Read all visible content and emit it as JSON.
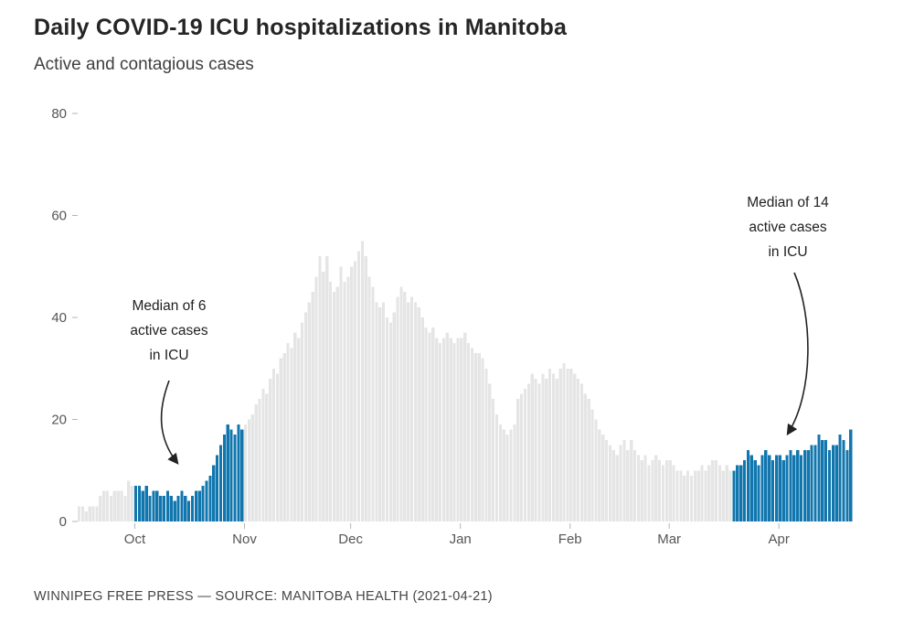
{
  "header": {
    "title": "Daily COVID-19 ICU hospitalizations in Manitoba",
    "subtitle": "Active and contagious cases"
  },
  "footer": {
    "credit": "WINNIPEG FREE PRESS — SOURCE: MANITOBA HEALTH (2021-04-21)"
  },
  "annotations": {
    "left": {
      "lines": [
        "Median of 6",
        "active cases",
        "in ICU"
      ]
    },
    "right": {
      "lines": [
        "Median of 14",
        "active cases",
        "in ICU"
      ]
    }
  },
  "colors": {
    "highlight_blue": "#1076ad",
    "muted_gray": "#e5e5e5",
    "axis_text": "#555555",
    "annotation_text": "#1f1f1f"
  },
  "chart_data": {
    "type": "bar",
    "title": "Daily COVID-19 ICU hospitalizations in Manitoba",
    "subtitle": "Active and contagious cases",
    "xlabel": "",
    "ylabel": "",
    "ylim": [
      0,
      80
    ],
    "y_ticks": [
      0,
      20,
      40,
      60,
      80
    ],
    "grid": "none",
    "legend": "none",
    "x_tick_months": [
      {
        "label": "Oct",
        "index": 16
      },
      {
        "label": "Nov",
        "index": 47
      },
      {
        "label": "Dec",
        "index": 77
      },
      {
        "label": "Jan",
        "index": 108
      },
      {
        "label": "Feb",
        "index": 139
      },
      {
        "label": "Mar",
        "index": 167
      },
      {
        "label": "Apr",
        "index": 198
      }
    ],
    "x_range_note": "daily bars, mid-September 2020 through 2021-04-21",
    "values": [
      3,
      3,
      2,
      3,
      3,
      3,
      5,
      6,
      6,
      5,
      6,
      6,
      6,
      5,
      8,
      7,
      7,
      7,
      6,
      7,
      5,
      6,
      6,
      5,
      5,
      6,
      5,
      4,
      5,
      6,
      5,
      4,
      5,
      6,
      6,
      7,
      8,
      9,
      11,
      13,
      15,
      17,
      19,
      18,
      17,
      19,
      18,
      19,
      20,
      21,
      23,
      24,
      26,
      25,
      28,
      30,
      29,
      32,
      33,
      35,
      34,
      37,
      36,
      39,
      41,
      43,
      45,
      48,
      52,
      49,
      52,
      47,
      45,
      46,
      50,
      47,
      48,
      50,
      51,
      53,
      55,
      52,
      48,
      46,
      43,
      42,
      43,
      40,
      39,
      41,
      44,
      46,
      45,
      43,
      44,
      43,
      42,
      40,
      38,
      37,
      38,
      36,
      35,
      36,
      37,
      36,
      35,
      36,
      36,
      37,
      35,
      34,
      33,
      33,
      32,
      30,
      27,
      24,
      21,
      19,
      18,
      17,
      18,
      19,
      24,
      25,
      26,
      27,
      29,
      28,
      27,
      29,
      28,
      30,
      29,
      28,
      30,
      31,
      30,
      30,
      29,
      28,
      27,
      25,
      24,
      22,
      20,
      18,
      17,
      16,
      15,
      14,
      13,
      15,
      16,
      14,
      16,
      14,
      13,
      12,
      13,
      11,
      12,
      13,
      12,
      11,
      12,
      12,
      11,
      10,
      10,
      9,
      10,
      9,
      10,
      10,
      11,
      10,
      11,
      12,
      12,
      11,
      10,
      11,
      10,
      10,
      11,
      11,
      12,
      14,
      13,
      12,
      11,
      13,
      14,
      13,
      12,
      13,
      13,
      12,
      13,
      14,
      13,
      14,
      13,
      14,
      14,
      15,
      15,
      17,
      16,
      16,
      14,
      15,
      15,
      17,
      16,
      14,
      18
    ],
    "highlight_ranges": [
      {
        "start": 16,
        "end": 46,
        "label": "Median of 6 active cases in ICU"
      },
      {
        "start": 185,
        "end": 218,
        "label": "Median of 14 active cases in ICU"
      }
    ]
  }
}
